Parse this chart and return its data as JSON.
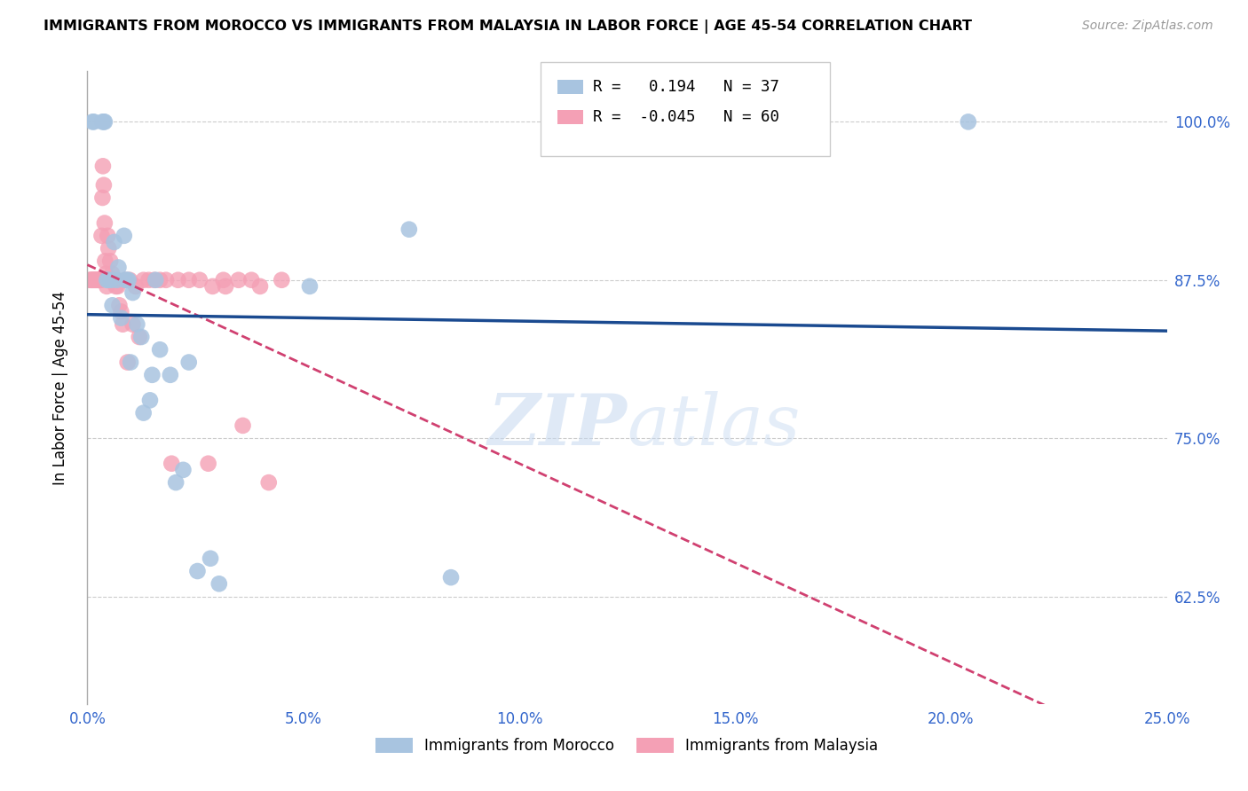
{
  "title": "IMMIGRANTS FROM MOROCCO VS IMMIGRANTS FROM MALAYSIA IN LABOR FORCE | AGE 45-54 CORRELATION CHART",
  "source": "Source: ZipAtlas.com",
  "xlim": [
    0.0,
    25.0
  ],
  "ylim": [
    54.0,
    104.0
  ],
  "xtick_vals": [
    0.0,
    5.0,
    10.0,
    15.0,
    20.0,
    25.0
  ],
  "xtick_labels": [
    "0.0%",
    "5.0%",
    "10.0%",
    "15.0%",
    "20.0%",
    "25.0%"
  ],
  "ytick_vals": [
    62.5,
    75.0,
    87.5,
    100.0
  ],
  "ytick_labels": [
    "62.5%",
    "75.0%",
    "87.5%",
    "100.0%"
  ],
  "ylabel": "In Labor Force | Age 45-54",
  "legend_blue_label": "Immigrants from Morocco",
  "legend_pink_label": "Immigrants from Malaysia",
  "blue_R": "0.194",
  "blue_N": "37",
  "pink_R": "-0.045",
  "pink_N": "60",
  "blue_color": "#a8c4e0",
  "pink_color": "#f4a0b5",
  "blue_line_color": "#1a4a90",
  "pink_line_color": "#d04070",
  "watermark_zip": "ZIP",
  "watermark_atlas": "atlas",
  "morocco_x": [
    0.12,
    0.15,
    0.35,
    0.38,
    0.4,
    0.45,
    0.48,
    0.55,
    0.58,
    0.62,
    0.68,
    0.72,
    0.78,
    0.85,
    0.88,
    0.92,
    0.95,
    1.0,
    1.05,
    1.15,
    1.25,
    1.3,
    1.45,
    1.5,
    1.58,
    1.68,
    1.92,
    2.05,
    2.22,
    2.35,
    2.55,
    2.85,
    3.05,
    5.15,
    7.45,
    8.42,
    20.4
  ],
  "morocco_y": [
    100.0,
    100.0,
    100.0,
    100.0,
    100.0,
    87.5,
    87.5,
    87.5,
    85.5,
    90.5,
    87.5,
    88.5,
    84.5,
    91.0,
    87.5,
    87.5,
    87.5,
    81.0,
    86.5,
    84.0,
    83.0,
    77.0,
    78.0,
    80.0,
    87.5,
    82.0,
    80.0,
    71.5,
    72.5,
    81.0,
    64.5,
    65.5,
    63.5,
    87.0,
    91.5,
    64.0,
    100.0
  ],
  "malaysia_x": [
    0.05,
    0.08,
    0.1,
    0.12,
    0.14,
    0.16,
    0.18,
    0.2,
    0.22,
    0.24,
    0.26,
    0.28,
    0.3,
    0.32,
    0.33,
    0.35,
    0.36,
    0.38,
    0.4,
    0.41,
    0.43,
    0.45,
    0.47,
    0.49,
    0.51,
    0.53,
    0.55,
    0.57,
    0.6,
    0.63,
    0.66,
    0.7,
    0.74,
    0.78,
    0.82,
    0.88,
    0.93,
    0.98,
    1.05,
    1.12,
    1.2,
    1.3,
    1.42,
    1.55,
    1.68,
    1.82,
    1.95,
    2.1,
    2.35,
    2.6,
    2.9,
    3.15,
    3.5,
    4.0,
    4.5,
    3.8,
    3.2,
    2.8,
    3.6,
    4.2
  ],
  "malaysia_y": [
    87.5,
    87.5,
    87.5,
    87.5,
    87.5,
    87.5,
    87.5,
    87.5,
    87.5,
    87.5,
    87.5,
    87.5,
    87.5,
    87.5,
    91.0,
    94.0,
    96.5,
    95.0,
    92.0,
    89.0,
    88.0,
    87.0,
    91.0,
    90.0,
    87.5,
    89.0,
    87.5,
    88.0,
    87.5,
    87.5,
    87.0,
    87.0,
    85.5,
    85.0,
    84.0,
    87.5,
    81.0,
    87.5,
    84.0,
    87.0,
    83.0,
    87.5,
    87.5,
    87.5,
    87.5,
    87.5,
    73.0,
    87.5,
    87.5,
    87.5,
    87.0,
    87.5,
    87.5,
    87.0,
    87.5,
    87.5,
    87.0,
    73.0,
    76.0,
    71.5
  ]
}
